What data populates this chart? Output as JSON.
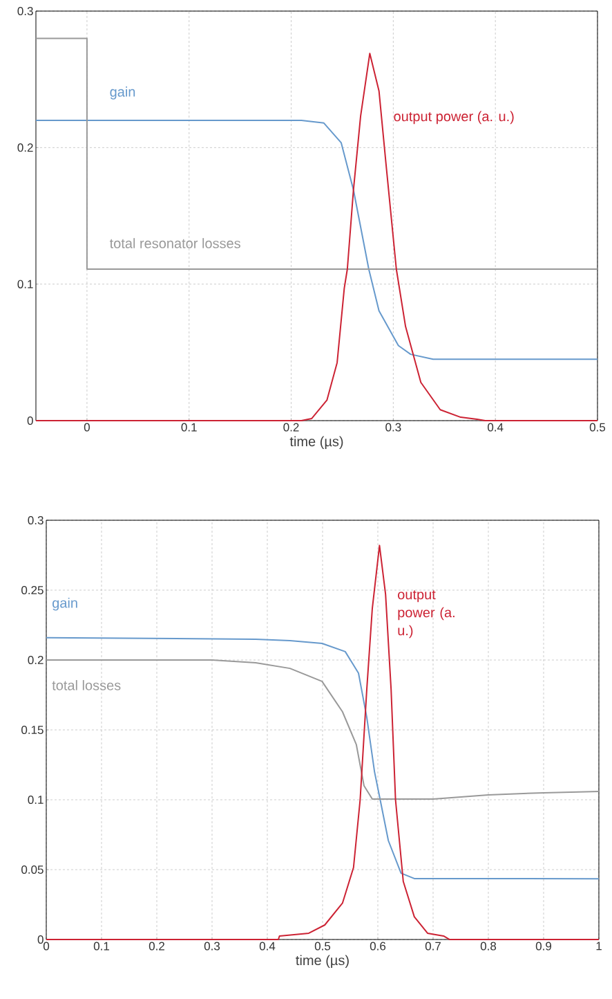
{
  "chart_data": [
    {
      "type": "line",
      "xlabel": "time (µs)",
      "xlim": [
        -0.05,
        0.5
      ],
      "ylim": [
        0,
        0.3
      ],
      "xticks": [
        0,
        0.1,
        0.2,
        0.3,
        0.4,
        0.5
      ],
      "yticks": [
        0,
        0.1,
        0.2,
        0.3
      ],
      "grid": true,
      "series": [
        {
          "name": "gain",
          "color": "#6699cc",
          "x": [
            -0.05,
            0.21,
            0.232,
            0.249,
            0.261,
            0.276,
            0.286,
            0.305,
            0.317,
            0.339,
            0.5
          ],
          "values": [
            0.22,
            0.22,
            0.218,
            0.2035,
            0.169,
            0.111,
            0.0805,
            0.055,
            0.0486,
            0.045,
            0.045
          ]
        },
        {
          "name": "total resonator losses",
          "color": "#999999",
          "x": [
            -0.05,
            0,
            0,
            0.5
          ],
          "values": [
            0.28,
            0.28,
            0.111,
            0.111
          ]
        },
        {
          "name": "output power (a. u.)",
          "color": "#cc2233",
          "x": [
            -0.05,
            0.21,
            0.22,
            0.235,
            0.245,
            0.252,
            0.255,
            0.261,
            0.268,
            0.277,
            0.286,
            0.293,
            0.303,
            0.312,
            0.327,
            0.346,
            0.366,
            0.382,
            0.39,
            0.5
          ],
          "values": [
            0,
            0,
            0.0015,
            0.015,
            0.0425,
            0.097,
            0.111,
            0.169,
            0.223,
            0.269,
            0.2415,
            0.187,
            0.111,
            0.069,
            0.028,
            0.008,
            0.0025,
            0.001,
            0,
            0
          ]
        }
      ]
    },
    {
      "type": "line",
      "xlabel": "time (µs)",
      "xlim": [
        0,
        1
      ],
      "ylim": [
        0,
        0.3
      ],
      "xticks": [
        0,
        0.1,
        0.2,
        0.3,
        0.4,
        0.5,
        0.6,
        0.7,
        0.8,
        0.9,
        1
      ],
      "yticks": [
        0,
        0.05,
        0.1,
        0.15,
        0.2,
        0.25,
        0.3
      ],
      "grid": true,
      "series": [
        {
          "name": "gain",
          "color": "#6699cc",
          "x": [
            0,
            0.379,
            0.441,
            0.499,
            0.541,
            0.565,
            0.58,
            0.594,
            0.604,
            0.619,
            0.642,
            0.666,
            1
          ],
          "values": [
            0.216,
            0.2149,
            0.2139,
            0.2119,
            0.206,
            0.1906,
            0.159,
            0.12,
            0.1005,
            0.0708,
            0.0475,
            0.0436,
            0.0435
          ]
        },
        {
          "name": "total losses",
          "color": "#999999",
          "x": [
            0,
            0.3,
            0.379,
            0.441,
            0.499,
            0.536,
            0.561,
            0.575,
            0.59,
            0.7,
            0.8,
            0.9,
            1
          ],
          "values": [
            0.2,
            0.2,
            0.198,
            0.194,
            0.1847,
            0.163,
            0.1396,
            0.11,
            0.1005,
            0.1005,
            0.1035,
            0.105,
            0.106
          ]
        },
        {
          "name": "output power (a. u.)",
          "color": "#cc2233",
          "x": [
            0,
            0.42,
            0.422,
            0.475,
            0.504,
            0.536,
            0.556,
            0.568,
            0.58,
            0.59,
            0.603,
            0.614,
            0.624,
            0.632,
            0.646,
            0.666,
            0.69,
            0.719,
            0.73,
            1
          ],
          "values": [
            0,
            0,
            0.0025,
            0.0045,
            0.0104,
            0.026,
            0.0515,
            0.1,
            0.179,
            0.237,
            0.282,
            0.247,
            0.179,
            0.1,
            0.0416,
            0.0163,
            0.0045,
            0.0025,
            0,
            0
          ]
        }
      ]
    }
  ]
}
